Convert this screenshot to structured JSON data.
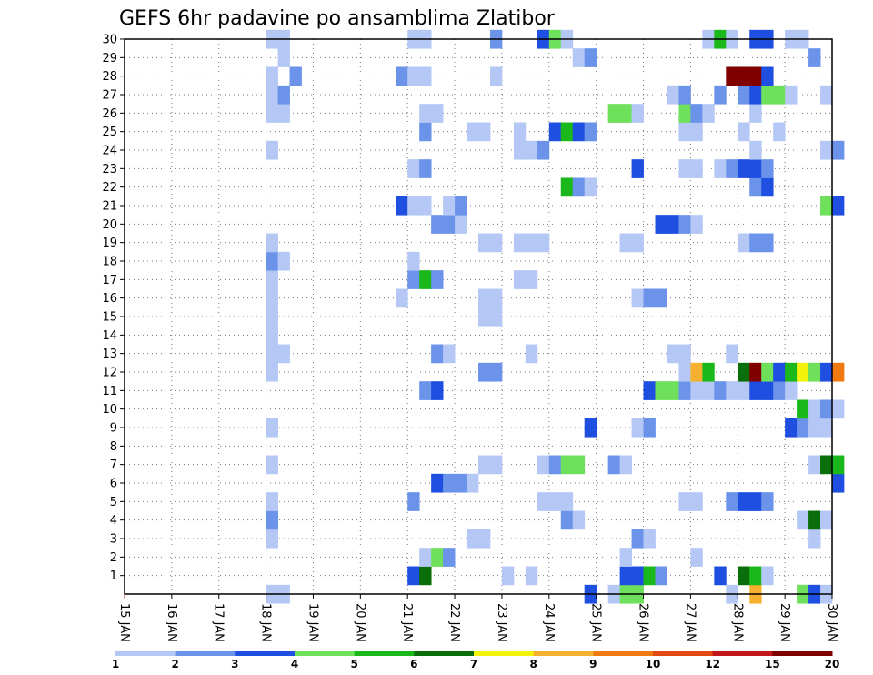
{
  "chart_data": {
    "type": "heatmap",
    "title": "GEFS 6hr padavine po ansamblima Zlatibor",
    "xlabel": "",
    "ylabel": "",
    "x_tick_labels": [
      "15 JAN",
      "16 JAN",
      "17 JAN",
      "18 JAN",
      "19 JAN",
      "20 JAN",
      "21 JAN",
      "22 JAN",
      "23 JAN",
      "24 JAN",
      "25 JAN",
      "26 JAN",
      "27 JAN",
      "28 JAN",
      "29 JAN",
      "30 JAN"
    ],
    "x_range_days": [
      15,
      30
    ],
    "steps_per_day": 4,
    "y_tick_labels": [
      "1",
      "2",
      "3",
      "4",
      "5",
      "6",
      "7",
      "8",
      "9",
      "10",
      "11",
      "12",
      "13",
      "14",
      "15",
      "16",
      "17",
      "18",
      "19",
      "20",
      "21",
      "22",
      "23",
      "24",
      "25",
      "26",
      "27",
      "28",
      "29",
      "30"
    ],
    "y_range": [
      0,
      30
    ],
    "grid": true,
    "colorbar": {
      "labels": [
        "1",
        "2",
        "3",
        "4",
        "5",
        "6",
        "7",
        "8",
        "9",
        "10",
        "12",
        "15",
        "20"
      ],
      "colors": [
        "#b5c8f5",
        "#6b93ea",
        "#1f4fe0",
        "#6ee05c",
        "#1ab81a",
        "#0a6e0a",
        "#f2f20a",
        "#f5b030",
        "#f07a10",
        "#e04a10",
        "#c01818",
        "#800000"
      ]
    },
    "cells": [
      [
        18.0,
        0,
        1
      ],
      [
        18.25,
        0,
        1
      ],
      [
        24.75,
        0,
        3
      ],
      [
        25.25,
        0,
        1
      ],
      [
        25.5,
        0,
        4
      ],
      [
        25.75,
        0,
        4
      ],
      [
        27.75,
        0,
        1
      ],
      [
        28.25,
        0,
        8
      ],
      [
        29.25,
        0,
        4
      ],
      [
        29.5,
        0,
        3
      ],
      [
        29.75,
        0,
        1
      ],
      [
        21.0,
        1,
        3
      ],
      [
        21.25,
        1,
        6
      ],
      [
        23.0,
        1,
        1
      ],
      [
        23.5,
        1,
        1
      ],
      [
        25.5,
        1,
        3
      ],
      [
        25.75,
        1,
        3
      ],
      [
        26.0,
        1,
        5
      ],
      [
        26.25,
        1,
        2
      ],
      [
        27.5,
        1,
        3
      ],
      [
        28.0,
        1,
        6
      ],
      [
        28.25,
        1,
        5
      ],
      [
        28.5,
        1,
        1
      ],
      [
        21.25,
        2,
        1
      ],
      [
        21.5,
        2,
        4
      ],
      [
        21.75,
        2,
        2
      ],
      [
        25.5,
        2,
        1
      ],
      [
        27.0,
        2,
        1
      ],
      [
        18.0,
        3,
        1
      ],
      [
        22.25,
        3,
        1
      ],
      [
        22.5,
        3,
        1
      ],
      [
        25.75,
        3,
        2
      ],
      [
        26.0,
        3,
        1
      ],
      [
        29.5,
        3,
        1
      ],
      [
        18.0,
        4,
        2
      ],
      [
        24.25,
        4,
        2
      ],
      [
        24.5,
        4,
        1
      ],
      [
        29.25,
        4,
        1
      ],
      [
        29.5,
        4,
        6
      ],
      [
        29.75,
        4,
        1
      ],
      [
        18.0,
        5,
        1
      ],
      [
        21.0,
        5,
        2
      ],
      [
        23.75,
        5,
        1
      ],
      [
        24.0,
        5,
        1
      ],
      [
        24.25,
        5,
        1
      ],
      [
        26.75,
        5,
        1
      ],
      [
        27.0,
        5,
        1
      ],
      [
        27.75,
        5,
        2
      ],
      [
        28.0,
        5,
        3
      ],
      [
        28.25,
        5,
        3
      ],
      [
        28.5,
        5,
        2
      ],
      [
        21.5,
        6,
        3
      ],
      [
        21.75,
        6,
        2
      ],
      [
        22.0,
        6,
        2
      ],
      [
        22.25,
        6,
        1
      ],
      [
        30.0,
        6,
        3
      ],
      [
        18.0,
        7,
        1
      ],
      [
        22.5,
        7,
        1
      ],
      [
        22.75,
        7,
        1
      ],
      [
        23.75,
        7,
        1
      ],
      [
        24.0,
        7,
        2
      ],
      [
        24.25,
        7,
        4
      ],
      [
        24.5,
        7,
        4
      ],
      [
        25.25,
        7,
        2
      ],
      [
        25.5,
        7,
        1
      ],
      [
        29.5,
        7,
        1
      ],
      [
        29.75,
        7,
        6
      ],
      [
        30.0,
        7,
        5
      ],
      [
        18.0,
        9,
        1
      ],
      [
        24.75,
        9,
        3
      ],
      [
        25.75,
        9,
        1
      ],
      [
        26.0,
        9,
        2
      ],
      [
        29.0,
        9,
        3
      ],
      [
        29.25,
        9,
        2
      ],
      [
        29.5,
        9,
        1
      ],
      [
        29.75,
        9,
        1
      ],
      [
        29.25,
        10,
        5
      ],
      [
        29.5,
        10,
        1
      ],
      [
        29.75,
        10,
        2
      ],
      [
        30.0,
        10,
        1
      ],
      [
        21.25,
        11,
        2
      ],
      [
        21.5,
        11,
        3
      ],
      [
        26.0,
        11,
        3
      ],
      [
        26.25,
        11,
        4
      ],
      [
        26.5,
        11,
        4
      ],
      [
        26.75,
        11,
        2
      ],
      [
        27.0,
        11,
        1
      ],
      [
        27.25,
        11,
        1
      ],
      [
        27.5,
        11,
        2
      ],
      [
        27.75,
        11,
        1
      ],
      [
        28.0,
        11,
        1
      ],
      [
        28.25,
        11,
        3
      ],
      [
        28.5,
        11,
        3
      ],
      [
        28.75,
        11,
        2
      ],
      [
        29.0,
        11,
        1
      ],
      [
        18.0,
        12,
        1
      ],
      [
        22.5,
        12,
        2
      ],
      [
        22.75,
        12,
        2
      ],
      [
        26.75,
        12,
        1
      ],
      [
        27.0,
        12,
        8
      ],
      [
        27.25,
        12,
        5
      ],
      [
        28.0,
        12,
        6
      ],
      [
        28.25,
        12,
        12
      ],
      [
        28.5,
        12,
        4
      ],
      [
        28.75,
        12,
        3
      ],
      [
        29.0,
        12,
        5
      ],
      [
        29.25,
        12,
        7
      ],
      [
        29.5,
        12,
        4
      ],
      [
        29.75,
        12,
        3
      ],
      [
        30.0,
        12,
        9
      ],
      [
        18.0,
        13,
        1
      ],
      [
        18.25,
        13,
        1
      ],
      [
        21.5,
        13,
        2
      ],
      [
        21.75,
        13,
        1
      ],
      [
        23.5,
        13,
        1
      ],
      [
        26.5,
        13,
        1
      ],
      [
        26.75,
        13,
        1
      ],
      [
        27.75,
        13,
        1
      ],
      [
        18.0,
        14,
        1
      ],
      [
        18.0,
        15,
        1
      ],
      [
        22.5,
        15,
        1
      ],
      [
        22.75,
        15,
        1
      ],
      [
        18.0,
        16,
        1
      ],
      [
        20.75,
        16,
        1
      ],
      [
        22.5,
        16,
        1
      ],
      [
        22.75,
        16,
        1
      ],
      [
        25.75,
        16,
        1
      ],
      [
        26.0,
        16,
        2
      ],
      [
        26.25,
        16,
        2
      ],
      [
        18.0,
        17,
        1
      ],
      [
        21.0,
        17,
        2
      ],
      [
        21.25,
        17,
        5
      ],
      [
        21.5,
        17,
        2
      ],
      [
        23.25,
        17,
        1
      ],
      [
        23.5,
        17,
        1
      ],
      [
        18.0,
        18,
        2
      ],
      [
        18.25,
        18,
        1
      ],
      [
        21.0,
        18,
        1
      ],
      [
        18.0,
        19,
        1
      ],
      [
        22.5,
        19,
        1
      ],
      [
        22.75,
        19,
        1
      ],
      [
        23.25,
        19,
        1
      ],
      [
        23.5,
        19,
        1
      ],
      [
        23.75,
        19,
        1
      ],
      [
        25.5,
        19,
        1
      ],
      [
        25.75,
        19,
        1
      ],
      [
        28.0,
        19,
        1
      ],
      [
        28.25,
        19,
        2
      ],
      [
        28.5,
        19,
        2
      ],
      [
        21.5,
        20,
        2
      ],
      [
        21.75,
        20,
        2
      ],
      [
        22.0,
        20,
        1
      ],
      [
        26.25,
        20,
        3
      ],
      [
        26.5,
        20,
        3
      ],
      [
        26.75,
        20,
        2
      ],
      [
        27.0,
        20,
        1
      ],
      [
        20.75,
        21,
        3
      ],
      [
        21.0,
        21,
        1
      ],
      [
        21.25,
        21,
        1
      ],
      [
        21.75,
        21,
        1
      ],
      [
        22.0,
        21,
        2
      ],
      [
        29.75,
        21,
        4
      ],
      [
        30.0,
        21,
        3
      ],
      [
        24.25,
        22,
        5
      ],
      [
        24.5,
        22,
        2
      ],
      [
        24.75,
        22,
        1
      ],
      [
        28.25,
        22,
        2
      ],
      [
        28.5,
        22,
        3
      ],
      [
        21.0,
        23,
        1
      ],
      [
        21.25,
        23,
        2
      ],
      [
        25.75,
        23,
        3
      ],
      [
        26.75,
        23,
        1
      ],
      [
        27.0,
        23,
        1
      ],
      [
        27.5,
        23,
        1
      ],
      [
        27.75,
        23,
        2
      ],
      [
        28.0,
        23,
        3
      ],
      [
        28.25,
        23,
        3
      ],
      [
        28.5,
        23,
        2
      ],
      [
        18.0,
        24,
        1
      ],
      [
        23.25,
        24,
        1
      ],
      [
        23.5,
        24,
        1
      ],
      [
        23.75,
        24,
        2
      ],
      [
        28.25,
        24,
        1
      ],
      [
        29.75,
        24,
        1
      ],
      [
        30.0,
        24,
        2
      ],
      [
        21.25,
        25,
        2
      ],
      [
        22.25,
        25,
        1
      ],
      [
        22.5,
        25,
        1
      ],
      [
        23.25,
        25,
        1
      ],
      [
        24.0,
        25,
        3
      ],
      [
        24.25,
        25,
        5
      ],
      [
        24.5,
        25,
        3
      ],
      [
        24.75,
        25,
        2
      ],
      [
        26.75,
        25,
        1
      ],
      [
        27.0,
        25,
        1
      ],
      [
        28.0,
        25,
        1
      ],
      [
        28.75,
        25,
        1
      ],
      [
        18.0,
        26,
        1
      ],
      [
        18.25,
        26,
        1
      ],
      [
        21.25,
        26,
        1
      ],
      [
        21.5,
        26,
        1
      ],
      [
        25.25,
        26,
        4
      ],
      [
        25.5,
        26,
        4
      ],
      [
        25.75,
        26,
        1
      ],
      [
        26.75,
        26,
        4
      ],
      [
        27.0,
        26,
        2
      ],
      [
        27.25,
        26,
        1
      ],
      [
        28.25,
        26,
        1
      ],
      [
        18.0,
        27,
        1
      ],
      [
        18.25,
        27,
        2
      ],
      [
        26.5,
        27,
        1
      ],
      [
        26.75,
        27,
        2
      ],
      [
        27.5,
        27,
        2
      ],
      [
        28.0,
        27,
        2
      ],
      [
        28.25,
        27,
        3
      ],
      [
        28.5,
        27,
        4
      ],
      [
        28.75,
        27,
        4
      ],
      [
        29.0,
        27,
        1
      ],
      [
        29.75,
        27,
        1
      ],
      [
        18.0,
        28,
        1
      ],
      [
        18.5,
        28,
        2
      ],
      [
        20.75,
        28,
        2
      ],
      [
        21.0,
        28,
        1
      ],
      [
        21.25,
        28,
        1
      ],
      [
        22.75,
        28,
        1
      ],
      [
        27.75,
        28,
        12
      ],
      [
        28.0,
        28,
        12
      ],
      [
        28.25,
        28,
        12
      ],
      [
        28.5,
        28,
        3
      ],
      [
        18.25,
        29,
        1
      ],
      [
        24.5,
        29,
        1
      ],
      [
        24.75,
        29,
        2
      ],
      [
        29.5,
        29,
        2
      ],
      [
        18.0,
        30,
        1
      ],
      [
        18.25,
        30,
        1
      ],
      [
        21.0,
        30,
        1
      ],
      [
        21.25,
        30,
        1
      ],
      [
        22.75,
        30,
        2
      ],
      [
        23.75,
        30,
        3
      ],
      [
        24.0,
        30,
        4
      ],
      [
        24.25,
        30,
        1
      ],
      [
        27.25,
        30,
        1
      ],
      [
        27.5,
        30,
        5
      ],
      [
        27.75,
        30,
        1
      ],
      [
        28.25,
        30,
        3
      ],
      [
        28.5,
        30,
        3
      ],
      [
        29.0,
        30,
        1
      ],
      [
        29.25,
        30,
        1
      ]
    ]
  }
}
